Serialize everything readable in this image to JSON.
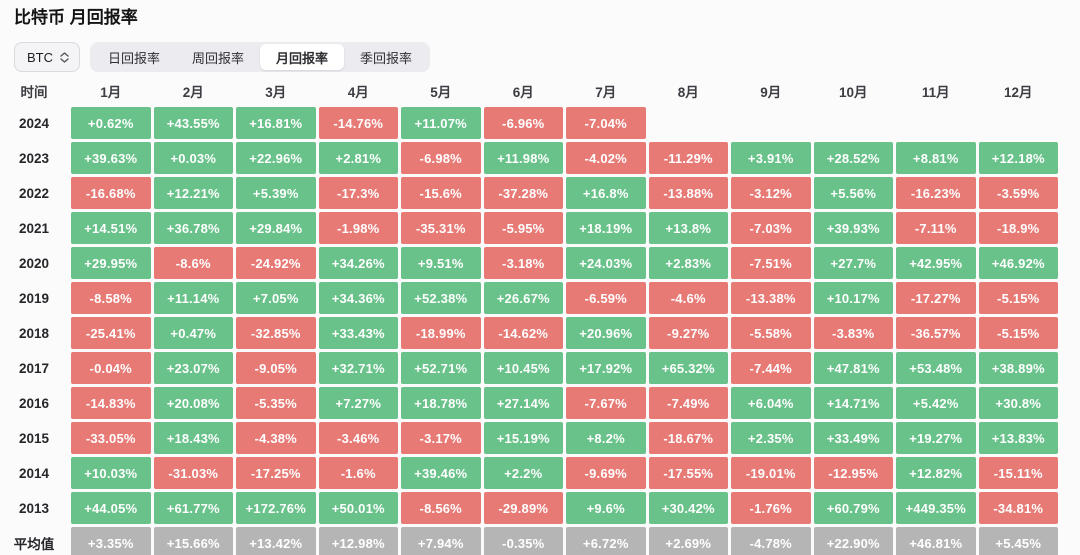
{
  "page": {
    "title": "比特币 月回报率"
  },
  "controls": {
    "coin_select": {
      "value": "BTC"
    },
    "tabs": [
      {
        "label": "日回报率",
        "active": false
      },
      {
        "label": "周回报率",
        "active": false
      },
      {
        "label": "月回报率",
        "active": true
      },
      {
        "label": "季回报率",
        "active": false
      }
    ]
  },
  "colors": {
    "positive": "#68c289",
    "negative": "#e87a76",
    "average_bg": "#b5b5b5",
    "page_bg": "#fbfbfb"
  },
  "table": {
    "time_header": "时间",
    "months": [
      "1月",
      "2月",
      "3月",
      "4月",
      "5月",
      "6月",
      "7月",
      "8月",
      "9月",
      "10月",
      "11月",
      "12月"
    ],
    "rows": [
      {
        "year": "2024",
        "values": [
          "+0.62%",
          "+43.55%",
          "+16.81%",
          "-14.76%",
          "+11.07%",
          "-6.96%",
          "-7.04%"
        ]
      },
      {
        "year": "2023",
        "values": [
          "+39.63%",
          "+0.03%",
          "+22.96%",
          "+2.81%",
          "-6.98%",
          "+11.98%",
          "-4.02%",
          "-11.29%",
          "+3.91%",
          "+28.52%",
          "+8.81%",
          "+12.18%"
        ]
      },
      {
        "year": "2022",
        "values": [
          "-16.68%",
          "+12.21%",
          "+5.39%",
          "-17.3%",
          "-15.6%",
          "-37.28%",
          "+16.8%",
          "-13.88%",
          "-3.12%",
          "+5.56%",
          "-16.23%",
          "-3.59%"
        ]
      },
      {
        "year": "2021",
        "values": [
          "+14.51%",
          "+36.78%",
          "+29.84%",
          "-1.98%",
          "-35.31%",
          "-5.95%",
          "+18.19%",
          "+13.8%",
          "-7.03%",
          "+39.93%",
          "-7.11%",
          "-18.9%"
        ]
      },
      {
        "year": "2020",
        "values": [
          "+29.95%",
          "-8.6%",
          "-24.92%",
          "+34.26%",
          "+9.51%",
          "-3.18%",
          "+24.03%",
          "+2.83%",
          "-7.51%",
          "+27.7%",
          "+42.95%",
          "+46.92%"
        ]
      },
      {
        "year": "2019",
        "values": [
          "-8.58%",
          "+11.14%",
          "+7.05%",
          "+34.36%",
          "+52.38%",
          "+26.67%",
          "-6.59%",
          "-4.6%",
          "-13.38%",
          "+10.17%",
          "-17.27%",
          "-5.15%"
        ]
      },
      {
        "year": "2018",
        "values": [
          "-25.41%",
          "+0.47%",
          "-32.85%",
          "+33.43%",
          "-18.99%",
          "-14.62%",
          "+20.96%",
          "-9.27%",
          "-5.58%",
          "-3.83%",
          "-36.57%",
          "-5.15%"
        ]
      },
      {
        "year": "2017",
        "values": [
          "-0.04%",
          "+23.07%",
          "-9.05%",
          "+32.71%",
          "+52.71%",
          "+10.45%",
          "+17.92%",
          "+65.32%",
          "-7.44%",
          "+47.81%",
          "+53.48%",
          "+38.89%"
        ]
      },
      {
        "year": "2016",
        "values": [
          "-14.83%",
          "+20.08%",
          "-5.35%",
          "+7.27%",
          "+18.78%",
          "+27.14%",
          "-7.67%",
          "-7.49%",
          "+6.04%",
          "+14.71%",
          "+5.42%",
          "+30.8%"
        ]
      },
      {
        "year": "2015",
        "values": [
          "-33.05%",
          "+18.43%",
          "-4.38%",
          "-3.46%",
          "-3.17%",
          "+15.19%",
          "+8.2%",
          "-18.67%",
          "+2.35%",
          "+33.49%",
          "+19.27%",
          "+13.83%"
        ]
      },
      {
        "year": "2014",
        "values": [
          "+10.03%",
          "-31.03%",
          "-17.25%",
          "-1.6%",
          "+39.46%",
          "+2.2%",
          "-9.69%",
          "-17.55%",
          "-19.01%",
          "-12.95%",
          "+12.82%",
          "-15.11%"
        ]
      },
      {
        "year": "2013",
        "values": [
          "+44.05%",
          "+61.77%",
          "+172.76%",
          "+50.01%",
          "-8.56%",
          "-29.89%",
          "+9.6%",
          "+30.42%",
          "-1.76%",
          "+60.79%",
          "+449.35%",
          "-34.81%"
        ]
      }
    ],
    "average_row": {
      "label": "平均值",
      "values": [
        "+3.35%",
        "+15.66%",
        "+13.42%",
        "+12.98%",
        "+7.94%",
        "-0.35%",
        "+6.72%",
        "+2.69%",
        "-4.78%",
        "+22.90%",
        "+46.81%",
        "+5.45%"
      ]
    }
  }
}
